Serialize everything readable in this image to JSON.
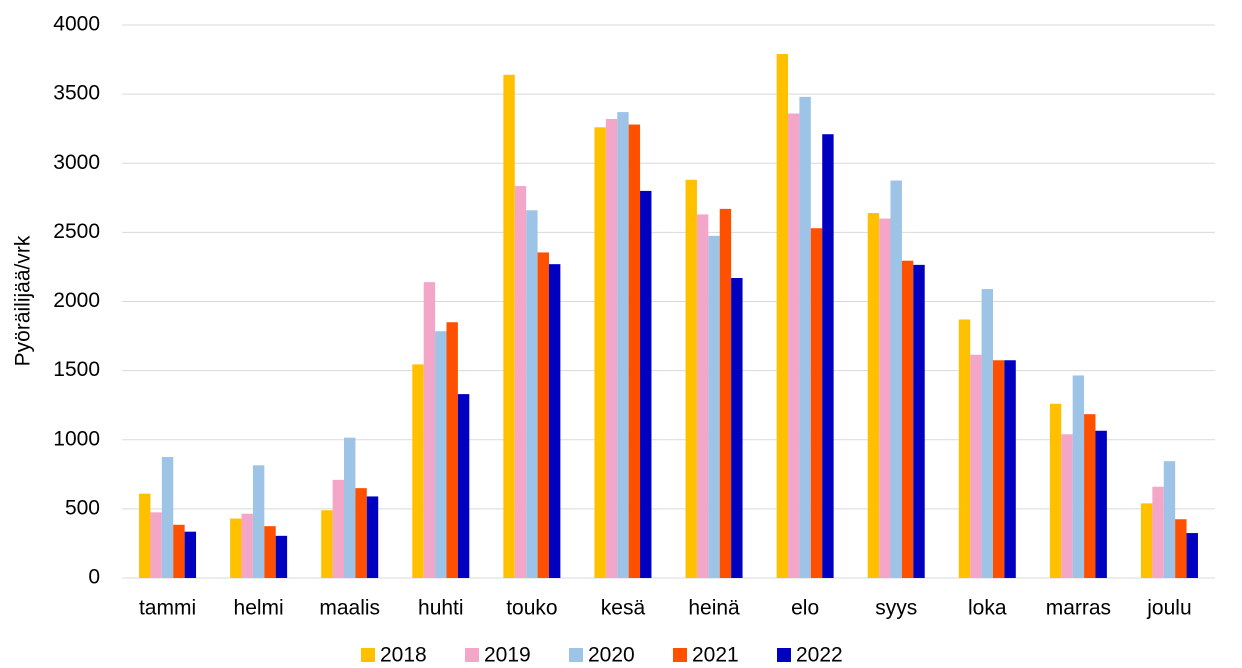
{
  "chart_data": {
    "type": "bar",
    "y_label": "Pyöräilijää/vrk",
    "categories": [
      "tammi",
      "helmi",
      "maalis",
      "huhti",
      "touko",
      "kesä",
      "heinä",
      "elo",
      "syys",
      "loka",
      "marras",
      "joulu"
    ],
    "series": [
      {
        "name": "2018",
        "color": "#ffc000",
        "values": [
          610,
          430,
          490,
          1545,
          3640,
          3260,
          2880,
          3790,
          2640,
          1870,
          1260,
          540
        ]
      },
      {
        "name": "2019",
        "color": "#f4a6c8",
        "values": [
          475,
          465,
          710,
          2140,
          2835,
          3320,
          2630,
          3360,
          2600,
          1615,
          1040,
          660
        ]
      },
      {
        "name": "2020",
        "color": "#9dc3e6",
        "values": [
          875,
          815,
          1015,
          1785,
          2660,
          3370,
          2475,
          3480,
          2875,
          2090,
          1465,
          845
        ]
      },
      {
        "name": "2021",
        "color": "#ff5000",
        "values": [
          385,
          375,
          650,
          1850,
          2355,
          3280,
          2670,
          2530,
          2295,
          1575,
          1185,
          425
        ]
      },
      {
        "name": "2022",
        "color": "#0000c0",
        "values": [
          335,
          305,
          590,
          1330,
          2270,
          2800,
          2170,
          3210,
          2265,
          1575,
          1065,
          325
        ]
      }
    ],
    "ylim": [
      0,
      4000
    ],
    "yticks": [
      0,
      500,
      1000,
      1500,
      2000,
      2500,
      3000,
      3500,
      4000
    ],
    "grid": true,
    "legend": "bottom"
  }
}
